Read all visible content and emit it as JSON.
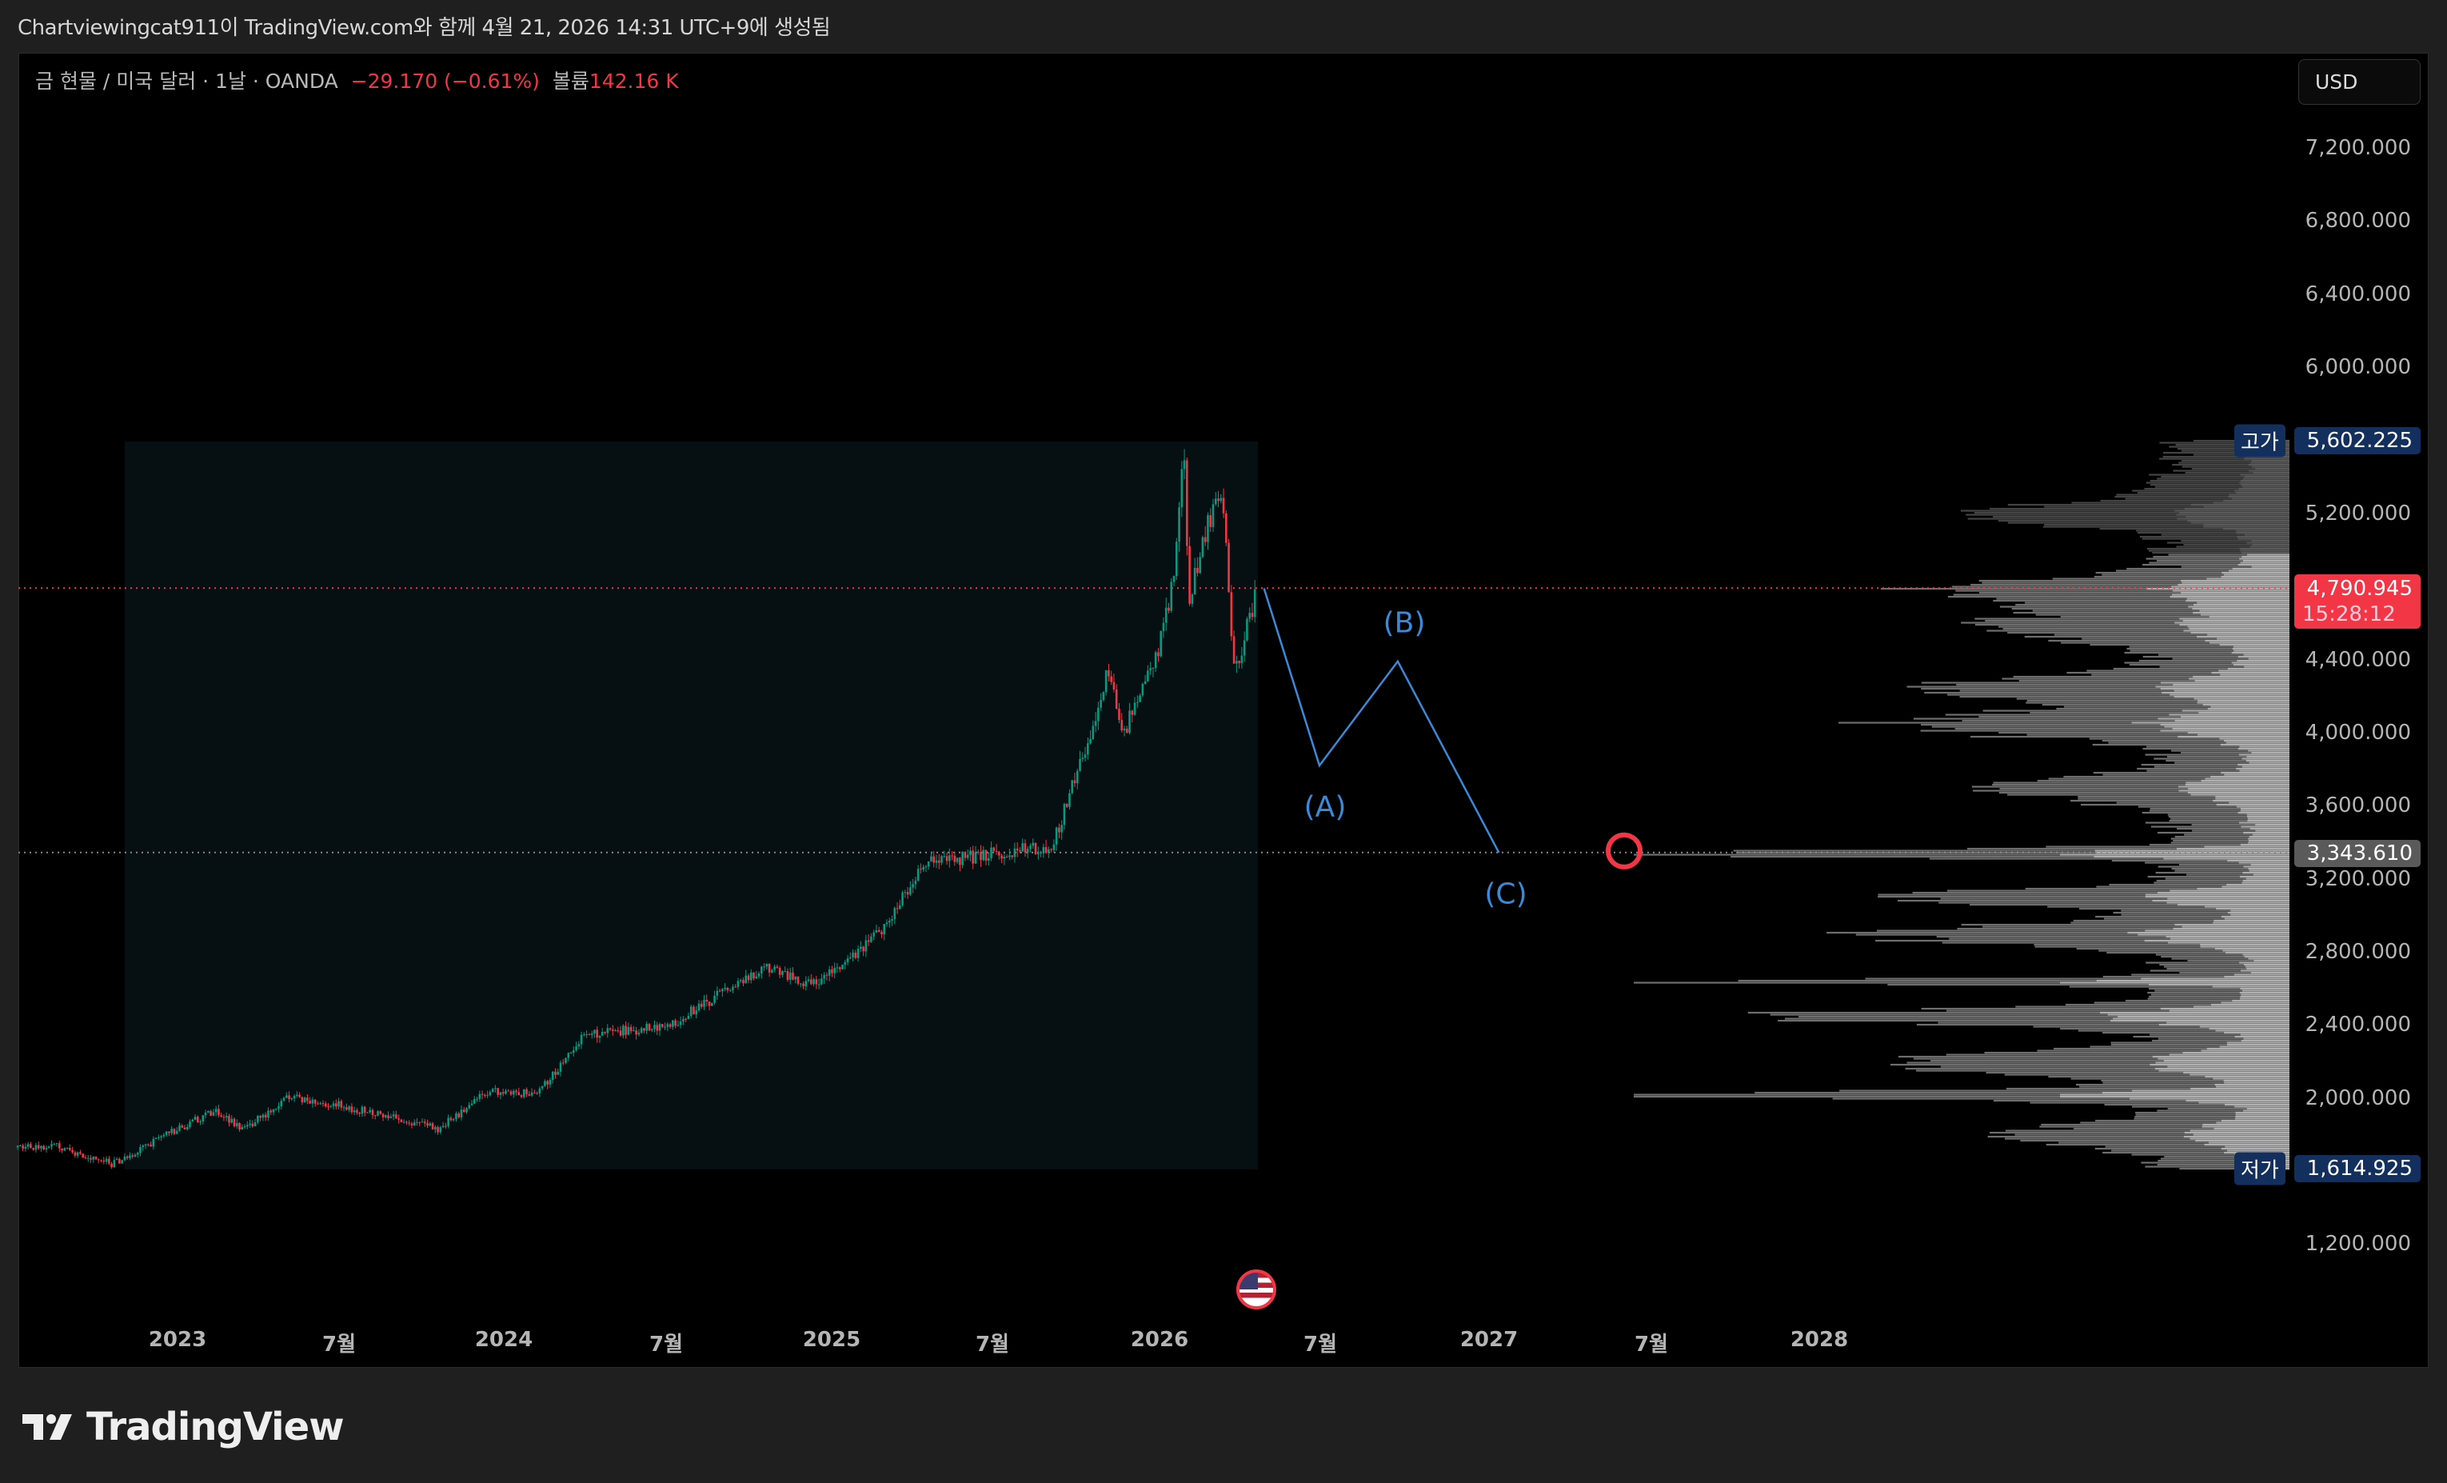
{
  "title": "Chartviewingcat911이 TradingView.com와 함께 4월 21, 2026 14:31 UTC+9에 생성됨",
  "legend": {
    "symbol": "금 현물 / 미국 달러 · 1날 · OANDA",
    "change": "−29.170 (−0.61%)",
    "volume_label": "볼륨",
    "volume": "142.16 K"
  },
  "currency_button": "USD",
  "price_axis": [
    "7,200.000",
    "6,800.000",
    "6,400.000",
    "6,000.000",
    "5,200.000",
    "4,400.000",
    "4,000.000",
    "3,600.000",
    "3,200.000",
    "2,800.000",
    "2,400.000",
    "2,000.000",
    "1,200.000"
  ],
  "tags": {
    "high_label": "고가",
    "high": "5,602.225",
    "last": "4,790.945",
    "countdown": "15:28:12",
    "poc": "3,343.610",
    "low_label": "저가",
    "low": "1,614.925"
  },
  "time_axis": [
    "2023",
    "7월",
    "2024",
    "7월",
    "2025",
    "7월",
    "2026",
    "7월",
    "2027",
    "7월",
    "2028"
  ],
  "waves": [
    "(A)",
    "(B)",
    "(C)"
  ],
  "footer": "TradingView",
  "colors": {
    "up": "#089981",
    "down": "#f23645",
    "wave": "#3b8ad9",
    "tag_blue": "#132f5e"
  },
  "chart_data": {
    "type": "candlestick",
    "title": "금 현물 / 미국 달러 · 1날 · OANDA",
    "ylim": [
      1000,
      7400
    ],
    "xlim": [
      2022.51,
      2028.6
    ],
    "price_path": [
      [
        2022.51,
        1730
      ],
      [
        2022.62,
        1740
      ],
      [
        2022.8,
        1640
      ],
      [
        2023.0,
        1830
      ],
      [
        2023.12,
        1930
      ],
      [
        2023.2,
        1830
      ],
      [
        2023.35,
        2010
      ],
      [
        2023.55,
        1940
      ],
      [
        2023.8,
        1830
      ],
      [
        2023.95,
        2040
      ],
      [
        2024.1,
        2020
      ],
      [
        2024.25,
        2350
      ],
      [
        2024.5,
        2390
      ],
      [
        2024.8,
        2720
      ],
      [
        2024.95,
        2620
      ],
      [
        2025.15,
        2900
      ],
      [
        2025.3,
        3300
      ],
      [
        2025.45,
        3320
      ],
      [
        2025.68,
        3380
      ],
      [
        2025.8,
        4000
      ],
      [
        2025.85,
        4350
      ],
      [
        2025.9,
        4000
      ],
      [
        2026.0,
        4400
      ],
      [
        2026.05,
        4800
      ],
      [
        2026.085,
        5600
      ],
      [
        2026.1,
        4700
      ],
      [
        2026.15,
        5100
      ],
      [
        2026.2,
        5350
      ],
      [
        2026.24,
        4300
      ],
      [
        2026.28,
        4600
      ],
      [
        2026.31,
        4790
      ]
    ],
    "projection": [
      [
        2026.33,
        4790
      ],
      [
        2026.5,
        3820
      ],
      [
        2026.74,
        4390
      ],
      [
        2027.05,
        3343
      ]
    ],
    "last": 4790.945,
    "high": 5602.225,
    "low": 1614.925,
    "poc": 3343.61
  }
}
